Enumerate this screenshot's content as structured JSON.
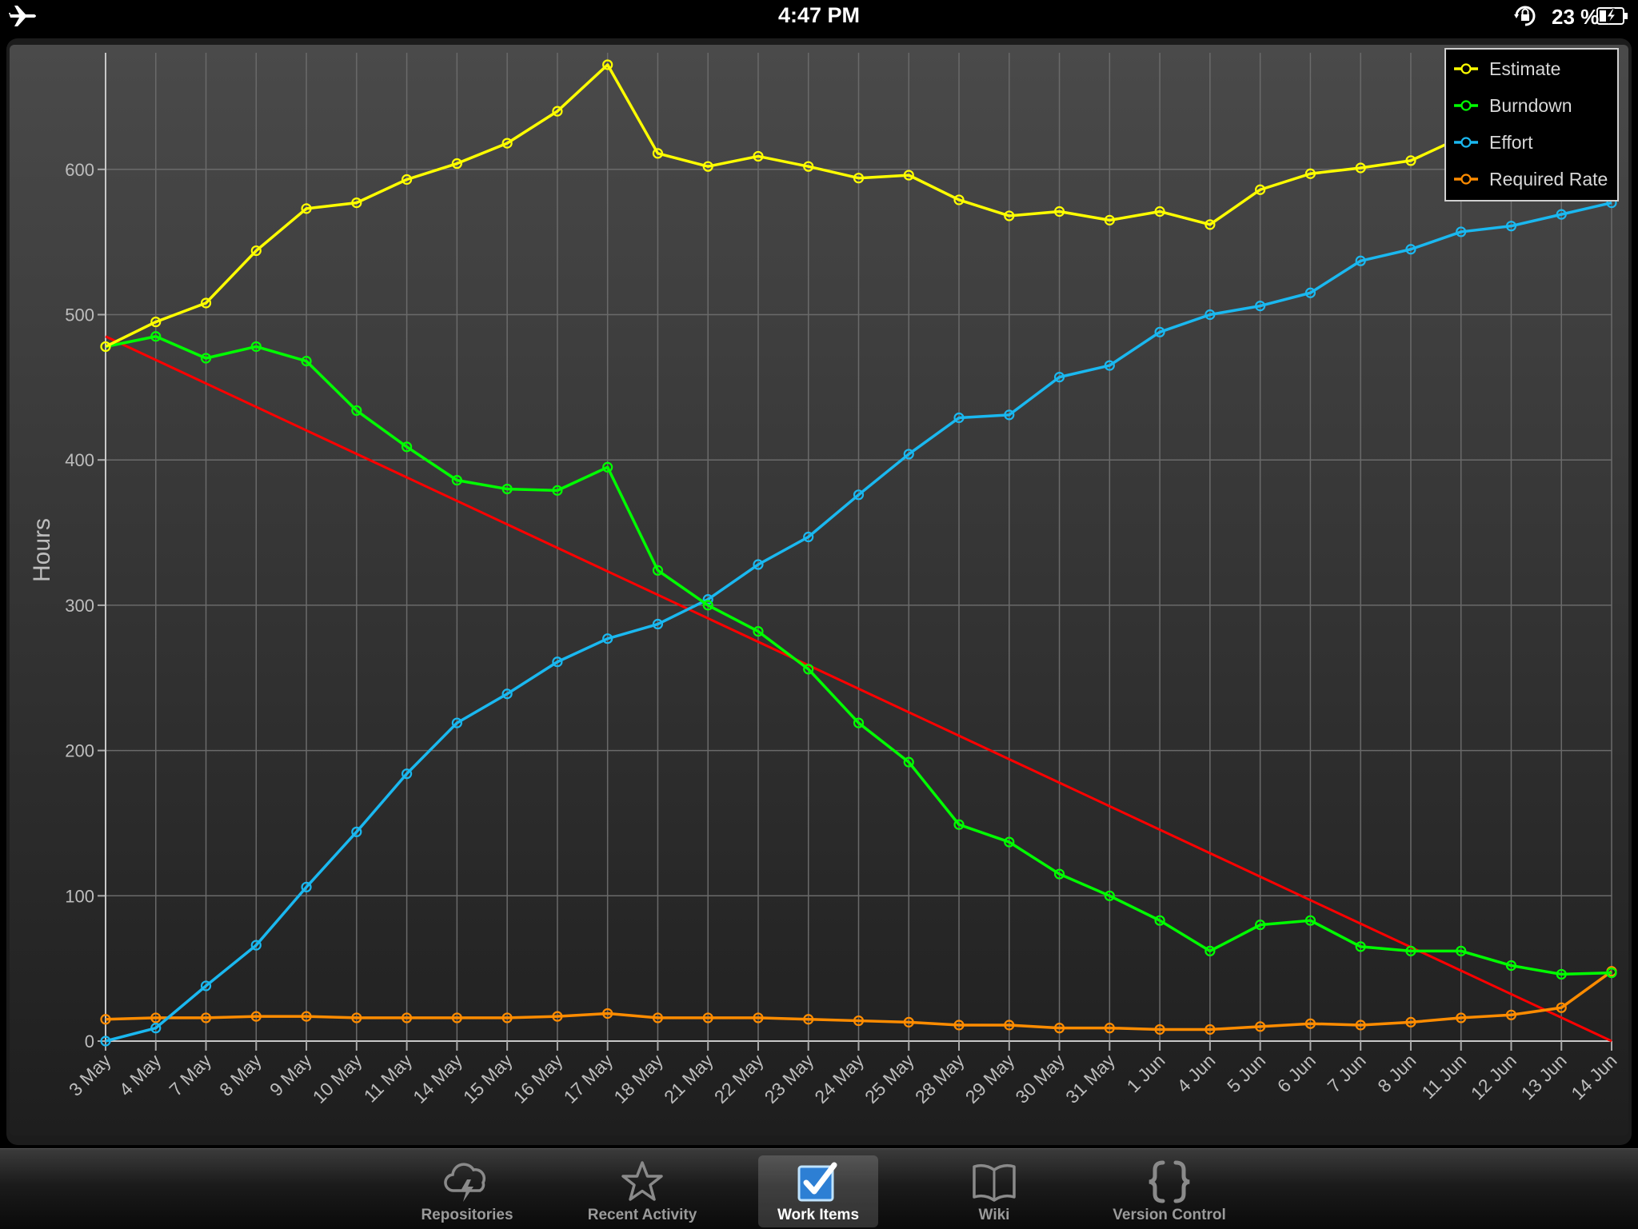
{
  "status_bar": {
    "time": "4:47 PM",
    "battery": "23 %"
  },
  "tab_bar": {
    "tabs": [
      {
        "label": "Repositories",
        "icon": "cloud-lightning-icon",
        "selected": false
      },
      {
        "label": "Recent Activity",
        "icon": "star-icon",
        "selected": false
      },
      {
        "label": "Work Items",
        "icon": "checkbox-icon",
        "selected": true
      },
      {
        "label": "Wiki",
        "icon": "book-icon",
        "selected": false
      },
      {
        "label": "Version Control",
        "icon": "braces-icon",
        "selected": false
      }
    ]
  },
  "chart_data": {
    "type": "line",
    "ylabel": "Hours",
    "xlabel": "",
    "ylim": [
      0,
      680
    ],
    "yticks": [
      0,
      100,
      200,
      300,
      400,
      500,
      600
    ],
    "grid": true,
    "legend_position": "top-right",
    "categories": [
      "3 May",
      "4 May",
      "7 May",
      "8 May",
      "9 May",
      "10 May",
      "11 May",
      "14 May",
      "15 May",
      "16 May",
      "17 May",
      "18 May",
      "21 May",
      "22 May",
      "23 May",
      "24 May",
      "25 May",
      "28 May",
      "29 May",
      "30 May",
      "31 May",
      "1 Jun",
      "4 Jun",
      "5 Jun",
      "6 Jun",
      "7 Jun",
      "8 Jun",
      "11 Jun",
      "12 Jun",
      "13 Jun",
      "14 Jun"
    ],
    "series": [
      {
        "name": "Estimate",
        "color": "#ffff00",
        "values": [
          478,
          495,
          508,
          544,
          573,
          577,
          593,
          604,
          618,
          640,
          672,
          611,
          602,
          609,
          602,
          594,
          596,
          579,
          568,
          571,
          565,
          571,
          562,
          586,
          597,
          601,
          606,
          622,
          628,
          634,
          640
        ]
      },
      {
        "name": "Burndown",
        "color": "#00ff00",
        "values": [
          478,
          485,
          470,
          478,
          468,
          434,
          409,
          386,
          380,
          379,
          395,
          324,
          300,
          282,
          256,
          219,
          192,
          149,
          137,
          115,
          100,
          83,
          62,
          80,
          83,
          65,
          62,
          62,
          52,
          46,
          47
        ]
      },
      {
        "name": "Effort",
        "color": "#1ab8f0",
        "values": [
          0,
          9,
          38,
          66,
          106,
          144,
          184,
          219,
          239,
          261,
          277,
          287,
          304,
          328,
          347,
          376,
          404,
          429,
          431,
          457,
          465,
          488,
          500,
          506,
          515,
          537,
          545,
          557,
          561,
          569,
          577
        ]
      },
      {
        "name": "Required Rate",
        "color": "#ff8c00",
        "values": [
          15,
          16,
          16,
          17,
          17,
          16,
          16,
          16,
          16,
          17,
          19,
          16,
          16,
          16,
          15,
          14,
          13,
          11,
          11,
          9,
          9,
          8,
          8,
          10,
          12,
          11,
          13,
          16,
          18,
          23,
          48
        ]
      }
    ],
    "trend_line": {
      "color": "#ff0000",
      "from": 485,
      "to": 0
    }
  }
}
